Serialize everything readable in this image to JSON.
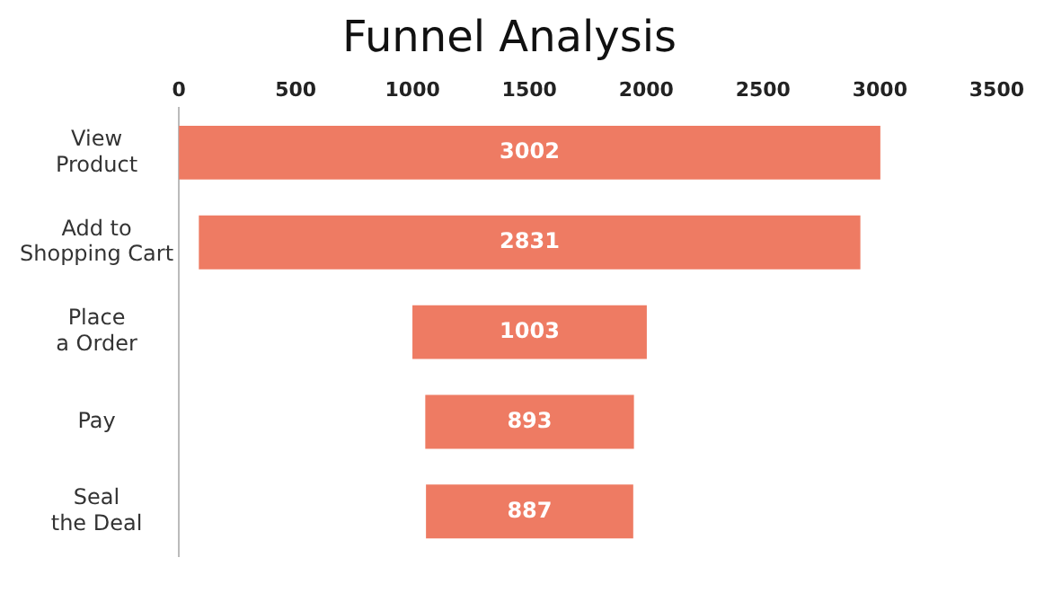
{
  "chart_data": {
    "type": "bar",
    "title": "Funnel Analysis",
    "orientation": "horizontal",
    "categories": [
      "View\nProduct",
      "Add to\nShopping Cart",
      "Place\na Order",
      "Pay",
      "Seal\nthe Deal"
    ],
    "values": [
      3002,
      2831,
      1003,
      893,
      887
    ],
    "base": [
      0,
      85.5,
      999.5,
      1054.5,
      1057.5
    ],
    "color": "#ee7b63",
    "xlim": [
      0,
      3500
    ],
    "xticks": [
      0,
      500,
      1000,
      1500,
      2000,
      2500,
      3000,
      3500
    ],
    "data_labels": true
  }
}
